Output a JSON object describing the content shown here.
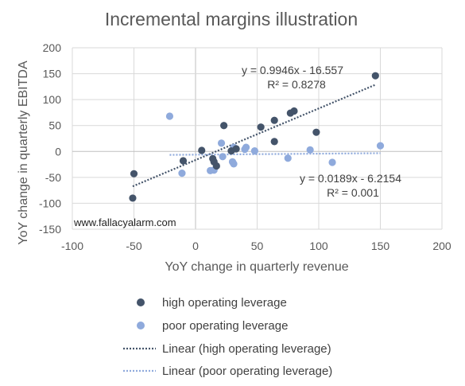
{
  "chart_data": {
    "type": "scatter",
    "title": "Incremental margins illustration",
    "xlabel": "YoY change in quarterly revenue",
    "ylabel": "YoY change in quarterly EBITDA",
    "xlim": [
      -100,
      200
    ],
    "ylim": [
      -150,
      200
    ],
    "x_ticks": [
      -100,
      -50,
      0,
      50,
      100,
      150,
      200
    ],
    "y_ticks": [
      -150,
      -100,
      -50,
      0,
      50,
      100,
      150,
      200
    ],
    "x_tick_labels": [
      "-100",
      "-50",
      "0",
      "50",
      "100",
      "150",
      "200"
    ],
    "y_tick_labels": [
      "-150",
      "-100",
      "-50",
      "0",
      "50",
      "100",
      "150",
      "200"
    ],
    "grid": true,
    "legend_position": "bottom",
    "watermark": "www.fallacyalarm.com",
    "series": [
      {
        "name": "high operating leverage",
        "color": "#44546a",
        "points": [
          [
            -50,
            -43
          ],
          [
            -51,
            -90
          ],
          [
            -10,
            -18
          ],
          [
            5,
            2
          ],
          [
            14,
            -14
          ],
          [
            15,
            -20
          ],
          [
            17,
            -28
          ],
          [
            23,
            50
          ],
          [
            29,
            1
          ],
          [
            33,
            5
          ],
          [
            53,
            47
          ],
          [
            64,
            60
          ],
          [
            64,
            19
          ],
          [
            77,
            74
          ],
          [
            80,
            78
          ],
          [
            98,
            37
          ],
          [
            146,
            146
          ]
        ]
      },
      {
        "name": "poor operating leverage",
        "color": "#8faadc",
        "points": [
          [
            -21,
            68
          ],
          [
            -11,
            -42
          ],
          [
            12,
            -37
          ],
          [
            15,
            -36
          ],
          [
            21,
            16
          ],
          [
            22,
            -10
          ],
          [
            30,
            -20
          ],
          [
            31,
            -24
          ],
          [
            31,
            8
          ],
          [
            40,
            4
          ],
          [
            41,
            8
          ],
          [
            48,
            1
          ],
          [
            75,
            -13
          ],
          [
            93,
            3
          ],
          [
            111,
            -21
          ],
          [
            150,
            11
          ]
        ]
      }
    ],
    "trendlines": [
      {
        "name": "Linear (high operating leverage)",
        "color": "#44546a",
        "slope": 0.9946,
        "intercept": -16.557,
        "x_range": [
          -51,
          146
        ],
        "equation": "y = 0.9946x - 16.557",
        "r2": "R² = 0.8278"
      },
      {
        "name": "Linear (poor operating leverage)",
        "color": "#8faadc",
        "slope": 0.0189,
        "intercept": -6.2154,
        "x_range": [
          -21,
          150
        ],
        "equation": "y = 0.0189x - 6.2154",
        "r2": "R² = 0.001"
      }
    ]
  }
}
